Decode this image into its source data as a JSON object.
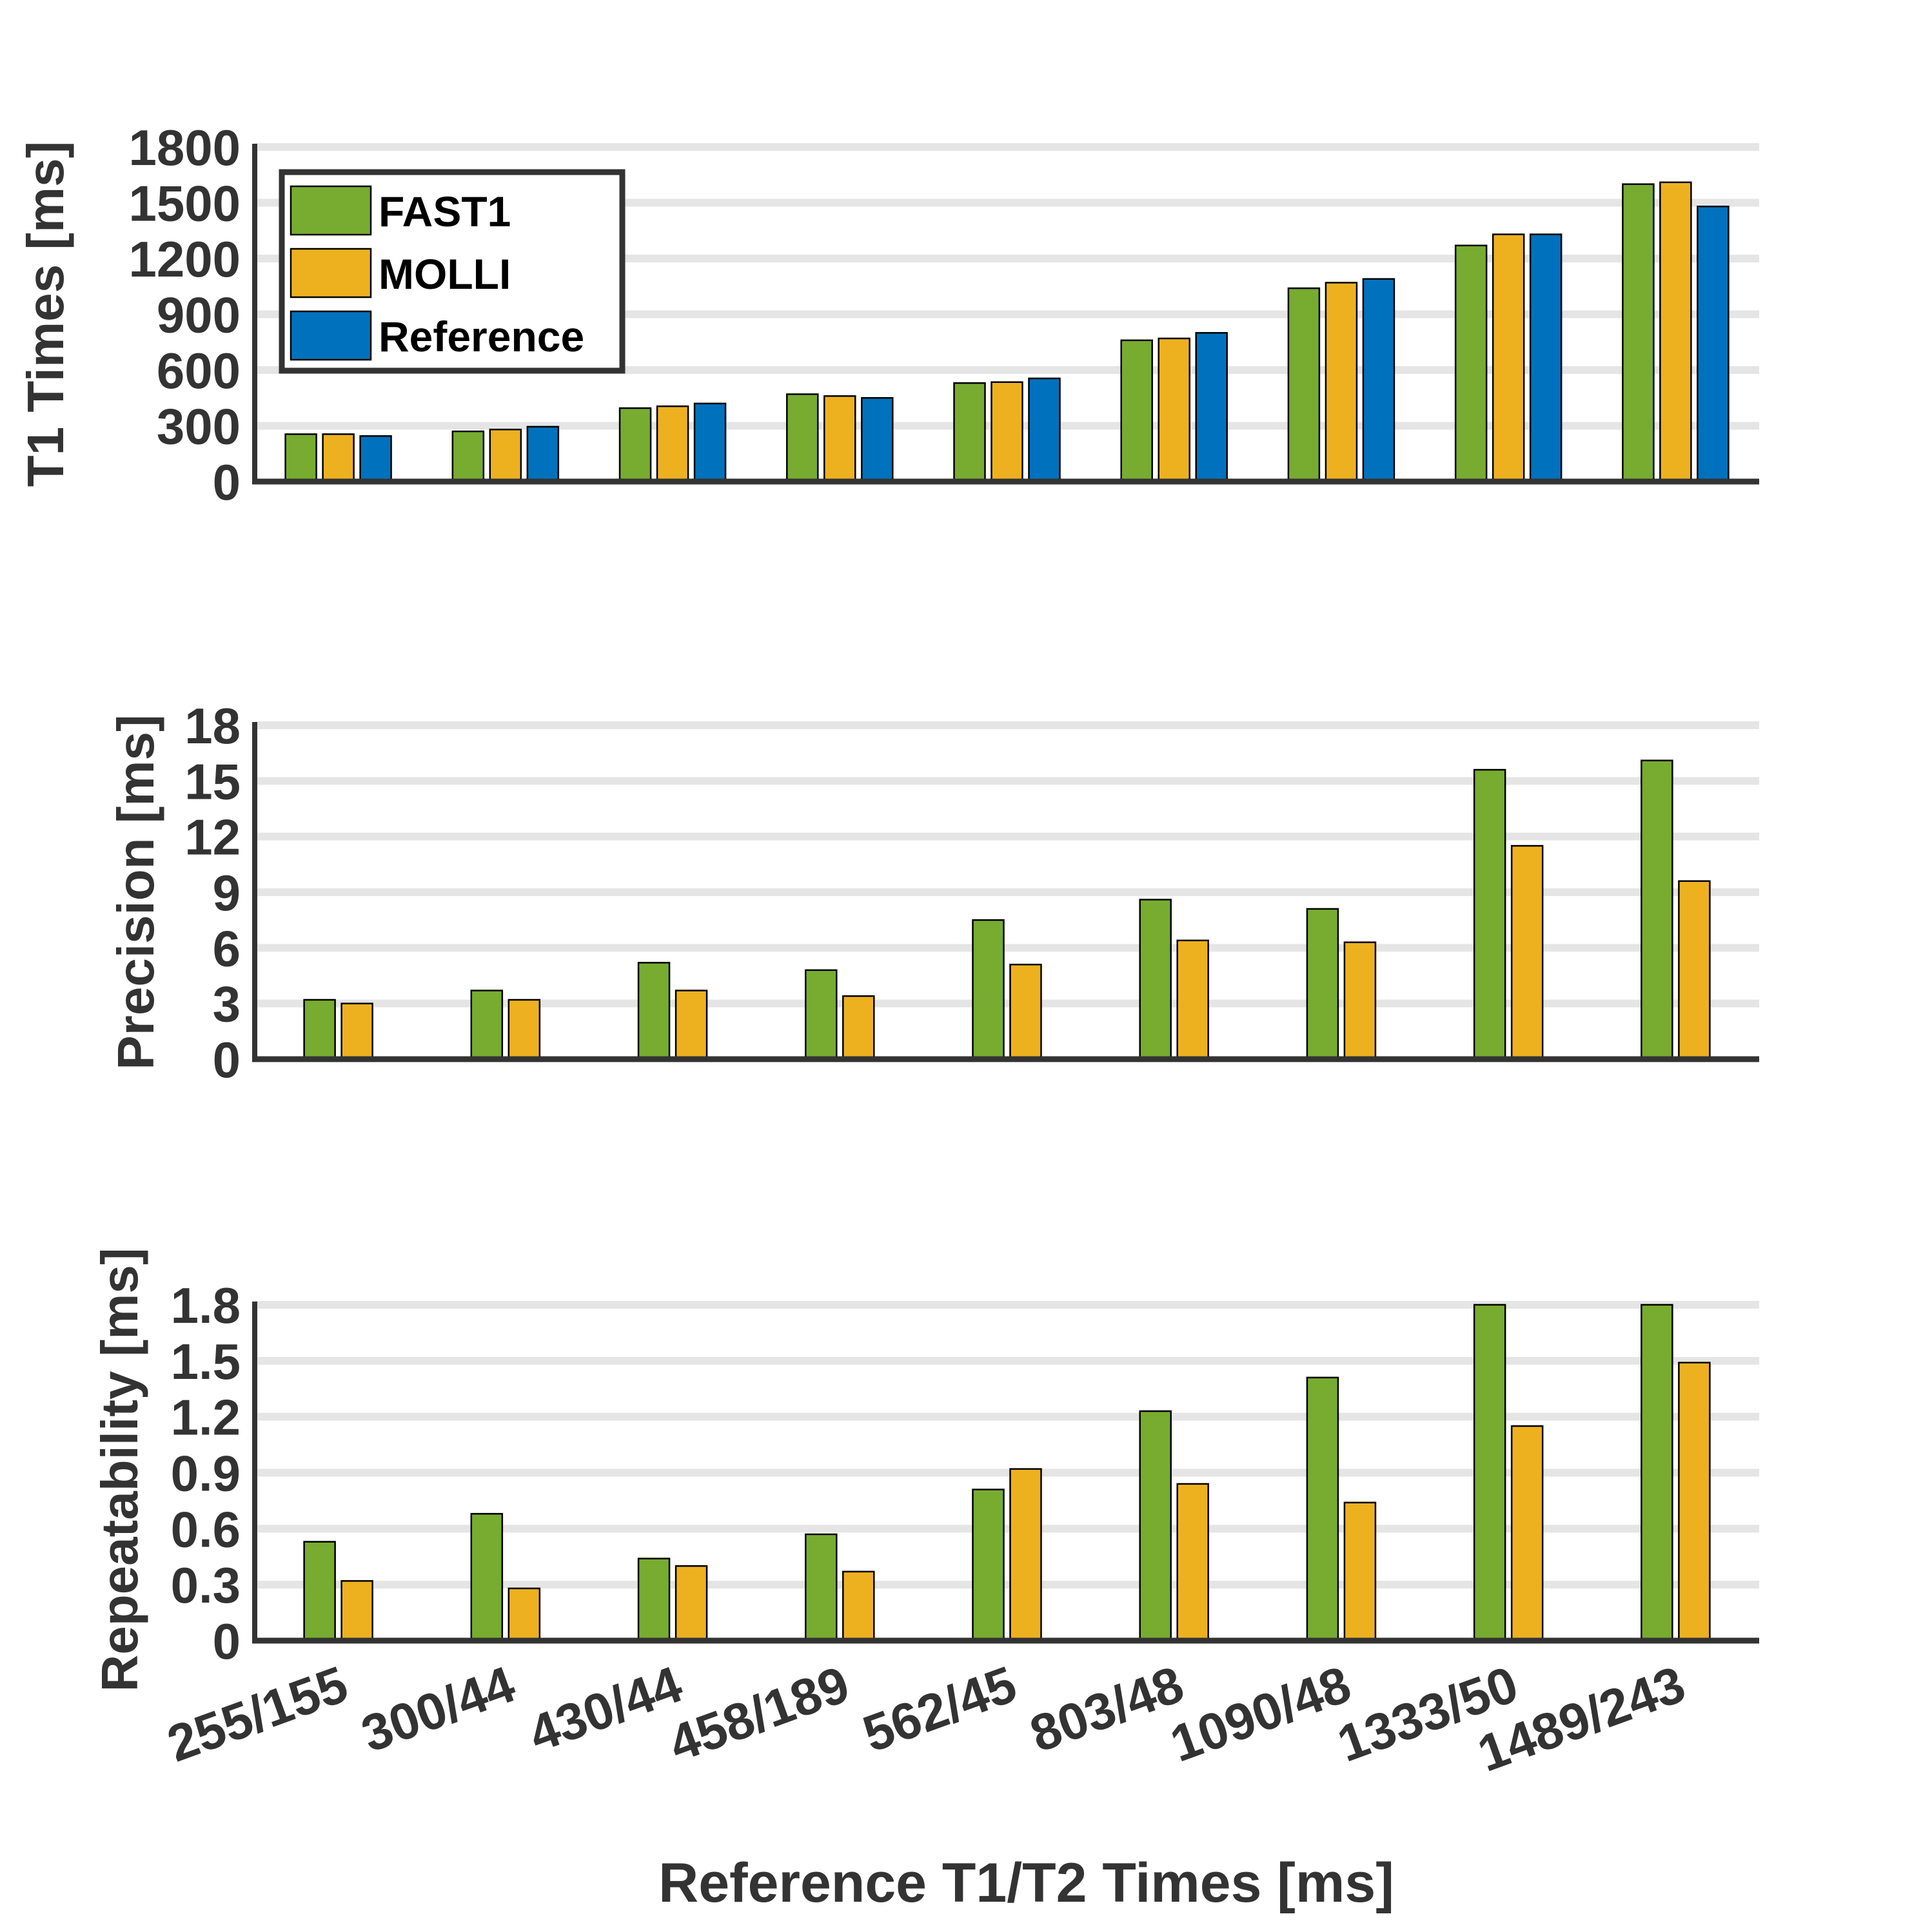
{
  "chart_data": [
    {
      "type": "bar",
      "ylabel": "T1 Times [ms]",
      "xlabel": "",
      "ylim": [
        0,
        1800
      ],
      "yticks": [
        0,
        300,
        600,
        900,
        1200,
        1500,
        1800
      ],
      "ytick_labels": [
        "0",
        "300",
        "600",
        "900",
        "1200",
        "1500",
        "1800"
      ],
      "grid": true,
      "legend": {
        "position": "top-left",
        "entries": [
          "FAST1",
          "MOLLI",
          "Reference"
        ]
      },
      "categories": [
        "255/155",
        "300/44",
        "430/44",
        "458/189",
        "562/45",
        "803/48",
        "1090/48",
        "1333/50",
        "1489/243"
      ],
      "series": [
        {
          "name": "FAST1",
          "values": [
            255,
            270,
            395,
            470,
            530,
            760,
            1040,
            1270,
            1600
          ]
        },
        {
          "name": "MOLLI",
          "values": [
            255,
            280,
            405,
            460,
            535,
            770,
            1070,
            1330,
            1610
          ]
        },
        {
          "name": "Reference",
          "values": [
            245,
            295,
            420,
            450,
            555,
            800,
            1090,
            1330,
            1480
          ]
        }
      ]
    },
    {
      "type": "bar",
      "ylabel": "Precision [ms]",
      "xlabel": "",
      "ylim": [
        0,
        18
      ],
      "yticks": [
        0,
        3,
        6,
        9,
        12,
        15,
        18
      ],
      "ytick_labels": [
        "0",
        "3",
        "6",
        "9",
        "12",
        "15",
        "18"
      ],
      "grid": true,
      "categories": [
        "255/155",
        "300/44",
        "430/44",
        "458/189",
        "562/45",
        "803/48",
        "1090/48",
        "1333/50",
        "1489/243"
      ],
      "series": [
        {
          "name": "FAST1",
          "values": [
            3.2,
            3.7,
            5.2,
            4.8,
            7.5,
            8.6,
            8.1,
            15.6,
            16.1
          ]
        },
        {
          "name": "MOLLI",
          "values": [
            3.0,
            3.2,
            3.7,
            3.4,
            5.1,
            6.4,
            6.3,
            11.5,
            9.6
          ]
        }
      ]
    },
    {
      "type": "bar",
      "ylabel": "Repeatability [ms]",
      "xlabel": "Reference T1/T2 Times [ms]",
      "ylim": [
        0,
        1.8
      ],
      "yticks": [
        0,
        0.3,
        0.6,
        0.9,
        1.2,
        1.5,
        1.8
      ],
      "ytick_labels": [
        "0",
        "0.3",
        "0.6",
        "0.9",
        "1.2",
        "1.5",
        "1.8"
      ],
      "grid": true,
      "categories": [
        "255/155",
        "300/44",
        "430/44",
        "458/189",
        "562/45",
        "803/48",
        "1090/48",
        "1333/50",
        "1489/243"
      ],
      "series": [
        {
          "name": "FAST1",
          "values": [
            0.53,
            0.68,
            0.44,
            0.57,
            0.81,
            1.23,
            1.41,
            1.8,
            1.8
          ]
        },
        {
          "name": "MOLLI",
          "values": [
            0.32,
            0.28,
            0.4,
            0.37,
            0.92,
            0.84,
            0.74,
            1.15,
            1.49
          ]
        }
      ]
    }
  ],
  "colors": {
    "FAST1": "#77AC30",
    "MOLLI": "#EDB120",
    "Reference": "#0072BD",
    "axis": "#333333",
    "grid": "#e5e5e5",
    "bar_edge": "#000000"
  }
}
